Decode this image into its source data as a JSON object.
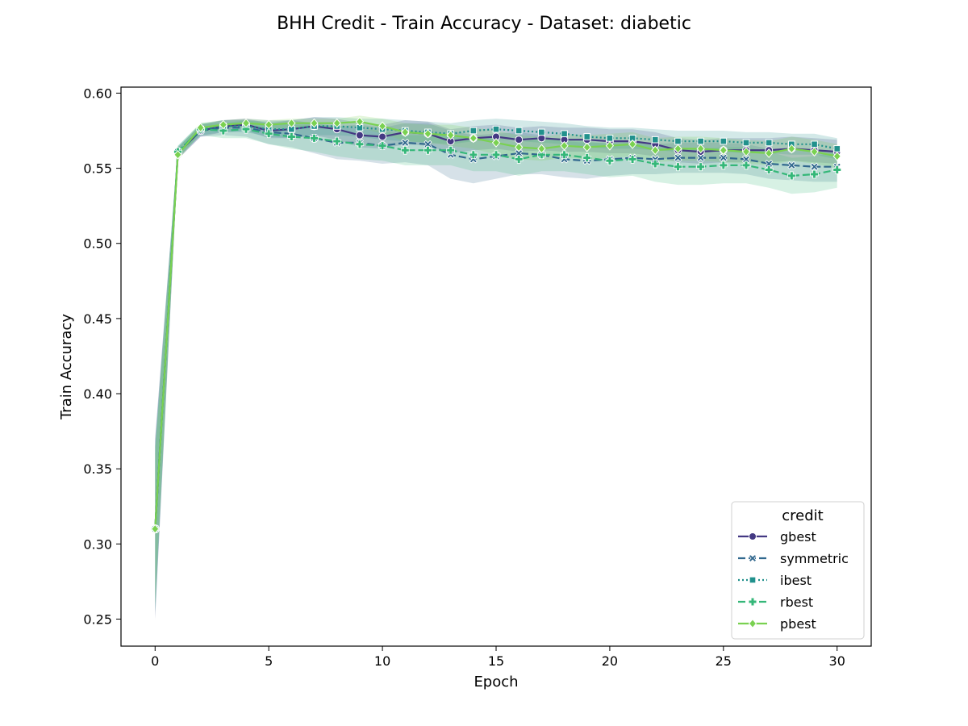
{
  "chart_data": {
    "type": "line",
    "title": "BHH Credit - Train Accuracy - Dataset: diabetic",
    "xlabel": "Epoch",
    "ylabel": "Train Accuracy",
    "xlim": [
      -1.5,
      31.5
    ],
    "ylim": [
      0.232,
      0.604
    ],
    "xticks": [
      0,
      5,
      10,
      15,
      20,
      25,
      30
    ],
    "xtick_labels": [
      "0",
      "5",
      "10",
      "15",
      "20",
      "25",
      "30"
    ],
    "yticks": [
      0.25,
      0.3,
      0.35,
      0.4,
      0.45,
      0.5,
      0.55,
      0.6
    ],
    "ytick_labels": [
      "0.25",
      "0.30",
      "0.35",
      "0.40",
      "0.45",
      "0.50",
      "0.55",
      "0.60"
    ],
    "grid": false,
    "legend": {
      "title": "credit",
      "position": "bottom-right"
    },
    "x": [
      0,
      1,
      2,
      3,
      4,
      5,
      6,
      7,
      8,
      9,
      10,
      11,
      12,
      13,
      14,
      15,
      16,
      17,
      18,
      19,
      20,
      21,
      22,
      23,
      24,
      25,
      26,
      27,
      28,
      29,
      30
    ],
    "series": [
      {
        "name": "gbest",
        "color": "#443983",
        "dash": "solid",
        "marker": "circle",
        "values": [
          0.31,
          0.56,
          0.575,
          0.578,
          0.579,
          0.575,
          0.576,
          0.578,
          0.576,
          0.572,
          0.571,
          0.574,
          0.573,
          0.568,
          0.57,
          0.571,
          0.569,
          0.57,
          0.569,
          0.569,
          0.568,
          0.568,
          0.566,
          0.562,
          0.561,
          0.562,
          0.562,
          0.562,
          0.563,
          0.562,
          0.561
        ],
        "band": [
          0.06,
          0.004,
          0.004,
          0.004,
          0.004,
          0.005,
          0.006,
          0.006,
          0.007,
          0.008,
          0.008,
          0.008,
          0.008,
          0.008,
          0.008,
          0.008,
          0.008,
          0.008,
          0.008,
          0.008,
          0.008,
          0.008,
          0.008,
          0.008,
          0.008,
          0.008,
          0.008,
          0.008,
          0.008,
          0.008,
          0.008
        ]
      },
      {
        "name": "symmetric",
        "color": "#31688e",
        "dash": "dashed",
        "marker": "x",
        "values": [
          0.31,
          0.56,
          0.575,
          0.577,
          0.577,
          0.574,
          0.573,
          0.57,
          0.567,
          0.567,
          0.565,
          0.567,
          0.566,
          0.559,
          0.556,
          0.558,
          0.56,
          0.559,
          0.556,
          0.555,
          0.556,
          0.557,
          0.556,
          0.557,
          0.557,
          0.557,
          0.556,
          0.553,
          0.552,
          0.551,
          0.551
        ],
        "band": [
          0.06,
          0.004,
          0.004,
          0.005,
          0.006,
          0.008,
          0.009,
          0.01,
          0.011,
          0.012,
          0.012,
          0.013,
          0.014,
          0.016,
          0.016,
          0.015,
          0.014,
          0.013,
          0.012,
          0.012,
          0.011,
          0.011,
          0.01,
          0.01,
          0.01,
          0.01,
          0.01,
          0.01,
          0.01,
          0.01,
          0.01
        ]
      },
      {
        "name": "ibest",
        "color": "#21918c",
        "dash": "dotted",
        "marker": "square",
        "values": [
          0.31,
          0.561,
          0.576,
          0.578,
          0.578,
          0.576,
          0.576,
          0.578,
          0.578,
          0.577,
          0.576,
          0.575,
          0.574,
          0.573,
          0.575,
          0.576,
          0.575,
          0.574,
          0.573,
          0.571,
          0.57,
          0.57,
          0.569,
          0.568,
          0.568,
          0.568,
          0.567,
          0.567,
          0.566,
          0.566,
          0.563
        ],
        "band": [
          0.055,
          0.004,
          0.004,
          0.004,
          0.004,
          0.005,
          0.006,
          0.006,
          0.006,
          0.006,
          0.007,
          0.007,
          0.007,
          0.007,
          0.007,
          0.007,
          0.007,
          0.007,
          0.007,
          0.007,
          0.007,
          0.007,
          0.007,
          0.007,
          0.007,
          0.007,
          0.007,
          0.007,
          0.007,
          0.007,
          0.007
        ]
      },
      {
        "name": "rbest",
        "color": "#35b779",
        "dash": "dashed",
        "marker": "plus",
        "values": [
          0.31,
          0.561,
          0.576,
          0.575,
          0.576,
          0.573,
          0.571,
          0.57,
          0.568,
          0.566,
          0.565,
          0.562,
          0.562,
          0.562,
          0.559,
          0.559,
          0.556,
          0.559,
          0.559,
          0.557,
          0.555,
          0.556,
          0.553,
          0.551,
          0.551,
          0.552,
          0.552,
          0.549,
          0.545,
          0.546,
          0.549
        ],
        "band": [
          0.055,
          0.004,
          0.004,
          0.005,
          0.006,
          0.007,
          0.008,
          0.009,
          0.01,
          0.01,
          0.01,
          0.01,
          0.01,
          0.01,
          0.011,
          0.011,
          0.011,
          0.011,
          0.011,
          0.011,
          0.011,
          0.011,
          0.012,
          0.012,
          0.012,
          0.012,
          0.012,
          0.012,
          0.012,
          0.012,
          0.012
        ]
      },
      {
        "name": "pbest",
        "color": "#7ad151",
        "dash": "solid",
        "marker": "diamond",
        "values": [
          0.31,
          0.559,
          0.577,
          0.579,
          0.58,
          0.579,
          0.58,
          0.58,
          0.58,
          0.581,
          0.578,
          0.574,
          0.573,
          0.572,
          0.57,
          0.567,
          0.564,
          0.563,
          0.565,
          0.564,
          0.565,
          0.566,
          0.562,
          0.563,
          0.563,
          0.562,
          0.561,
          0.56,
          0.563,
          0.561,
          0.558
        ],
        "band": [
          0.05,
          0.004,
          0.003,
          0.003,
          0.003,
          0.003,
          0.003,
          0.003,
          0.003,
          0.004,
          0.005,
          0.006,
          0.006,
          0.007,
          0.007,
          0.008,
          0.008,
          0.008,
          0.008,
          0.008,
          0.008,
          0.008,
          0.008,
          0.008,
          0.008,
          0.008,
          0.008,
          0.008,
          0.008,
          0.008,
          0.008
        ]
      }
    ]
  }
}
